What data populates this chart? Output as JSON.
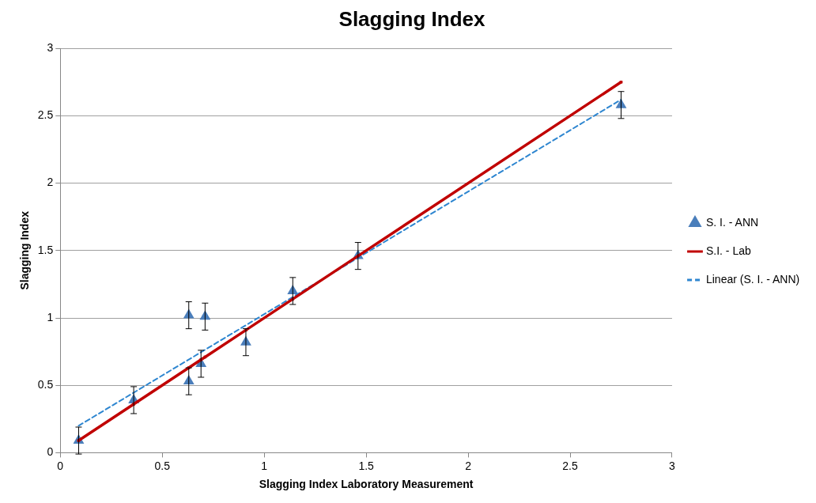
{
  "chart_data": {
    "type": "scatter",
    "title": "Slagging Index",
    "xlabel": "Slagging Index Laboratory Measurement",
    "ylabel": "Slagging Index",
    "xlim": [
      0,
      3
    ],
    "xticks": [
      0,
      0.5,
      1,
      1.5,
      2,
      2.5,
      3
    ],
    "ylim": [
      0,
      3
    ],
    "yticks": [
      0,
      0.5,
      1,
      1.5,
      2,
      2.5,
      3
    ],
    "grid": "y",
    "legend": "right",
    "series": [
      {
        "name": "S. I. - ANN",
        "type": "scatter",
        "marker": "triangle",
        "color": "#4a7ebb",
        "x": [
          0.09,
          0.36,
          0.63,
          0.71,
          0.63,
          0.69,
          0.91,
          1.14,
          1.46,
          2.75
        ],
        "values": [
          0.09,
          0.39,
          1.02,
          1.01,
          0.53,
          0.66,
          0.82,
          1.2,
          1.46,
          2.58
        ],
        "errors": [
          0.1,
          0.1,
          0.1,
          0.1,
          0.1,
          0.1,
          0.1,
          0.1,
          0.1,
          0.1
        ]
      },
      {
        "name": "S.I. - Lab",
        "type": "line",
        "marker": "square",
        "line_style": "solid",
        "color": "#c00000",
        "x": [
          0.09,
          0.36,
          0.63,
          0.69,
          0.71,
          0.91,
          1.14,
          1.46,
          2.75
        ],
        "values": [
          0.09,
          0.36,
          0.63,
          0.69,
          0.71,
          0.91,
          1.14,
          1.46,
          2.75
        ]
      },
      {
        "name": "Linear (S. I. - ANN)",
        "type": "line",
        "marker": "none",
        "line_style": "dashed",
        "color": "#2e86d0",
        "x": [
          0.09,
          2.75
        ],
        "values": [
          0.2,
          2.62
        ]
      }
    ]
  }
}
